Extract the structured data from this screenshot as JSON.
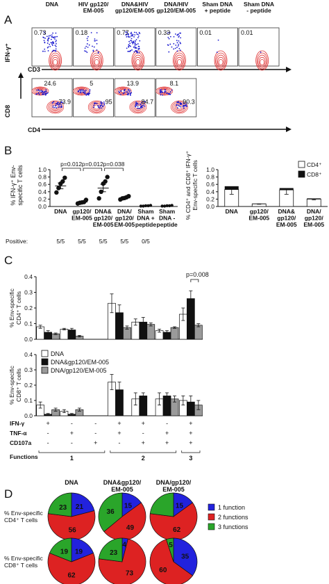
{
  "panel_a": {
    "letter": "A",
    "row1": {
      "headers": [
        "DNA",
        "HIV gp120/\nEM-005",
        "DNA&HIV\ngp120/EM-005",
        "DNA/HIV\ngp120/EM-005",
        "Sham DNA\n+ peptide",
        "Sham DNA\n- peptide"
      ],
      "percents": [
        "0.73",
        "0.18",
        "0.77",
        "0.33",
        "0.01",
        "0.01"
      ],
      "ylabel": "IFN-γ⁺",
      "xlabel": "CD3"
    },
    "row2": {
      "top_percents": [
        "24.6",
        "5",
        "13.9",
        "8.1"
      ],
      "right_percents": [
        "73.9",
        "95",
        "84.7",
        "90.3"
      ],
      "ylabel": "CD8",
      "xlabel": "CD4"
    }
  },
  "panel_b": {
    "letter": "B",
    "left": {
      "ylabel": "% IFN-γ⁺ Env-\nspecific T cells",
      "pvalues": [
        "p=0.012",
        "p=0.012",
        "p=0.038"
      ],
      "positive_label": "Positive:",
      "positive": [
        "5/5",
        "5/5",
        "5/5",
        "5/5",
        "0/5"
      ]
    },
    "right": {
      "ylabel": "% CD4⁺ and CD8⁺ IFN-γ⁺\nEnv-specific T cells",
      "legend": [
        "CD4⁺",
        "CD8⁺"
      ]
    }
  },
  "panel_c": {
    "letter": "C",
    "pvalue": "p=0.008",
    "legend": [
      "DNA",
      "DNA&gp120/EM-005",
      "DNA/gp120/EM-005"
    ],
    "row_labels": [
      "IFN-γ",
      "TNF-α",
      "CD107a"
    ],
    "functions_label": "Functions",
    "function_groups": [
      "1",
      "2",
      "3"
    ]
  },
  "panel_d": {
    "letter": "D",
    "col_titles": [
      "DNA",
      "DNA&gp120/\nEM-005",
      "DNA/gp120/\nEM-005"
    ],
    "row_labels": [
      "% Env-specific\nCD4⁺ T cells",
      "% Env-specific\nCD8⁺ T cells"
    ],
    "legend": [
      "1 function",
      "2 functions",
      "3 functions"
    ]
  },
  "colors": {
    "flow_red": "#e03030",
    "flow_blue": "#1a1ad0",
    "gray_bar": "#9a9a9a",
    "pie_blue": "#2222dd",
    "pie_red": "#dd2222",
    "pie_green": "#2aa52a"
  },
  "chart_data": [
    {
      "type": "scatter",
      "panel": "B-left",
      "categories": [
        "DNA",
        "gp120/\nEM-005",
        "DNA&\ngp120/\nEM-005",
        "DNA/\ngp120/\nEM-005",
        "Sham\nDNA +\npeptide",
        "Sham\nDNA -\npeptide"
      ],
      "yticks": [
        "0.0",
        "0.2",
        "0.4",
        "0.6",
        "0.8",
        "1.0"
      ],
      "ylim": [
        0,
        1.0
      ],
      "points": [
        [
          0.38,
          0.5,
          0.62,
          0.68,
          0.78
        ],
        [
          0.08,
          0.1,
          0.11,
          0.12,
          0.18
        ],
        [
          0.22,
          0.4,
          0.62,
          0.68,
          0.8
        ],
        [
          0.19,
          0.22,
          0.23,
          0.25,
          0.28
        ],
        [
          0.01,
          0.01,
          0.02,
          0.02,
          0.03
        ],
        [
          0.01,
          0.01,
          0.02,
          0.02,
          0.03
        ]
      ],
      "means": [
        0.56,
        0.12,
        0.5,
        0.23,
        0.02,
        0.02
      ],
      "sem": [
        0.08,
        0.02,
        0.1,
        0.02,
        0.005,
        0.005
      ]
    },
    {
      "type": "bar",
      "panel": "B-right",
      "categories": [
        "DNA",
        "gp120/\nEM-005",
        "DNA&\ngp120/\nEM-005",
        "DNA/\ngp120/\nEM-005"
      ],
      "yticks": [
        "0.0",
        "0.2",
        "0.4",
        "0.6",
        "0.8",
        "1.0"
      ],
      "ylim": [
        0,
        1.0
      ],
      "series": [
        {
          "name": "CD4⁺",
          "values": [
            0.46,
            0.07,
            0.45,
            0.2
          ]
        },
        {
          "name": "CD8⁺",
          "values": [
            0.09,
            0.01,
            0.05,
            0.02
          ]
        }
      ],
      "error": [
        0.13,
        0.01,
        0.12,
        0.02
      ]
    },
    {
      "type": "bar",
      "panel": "C-top",
      "ylabel": "% Env-specific\nCD4⁺ T cells",
      "yticks": [
        "0.0",
        "0.1",
        "0.2",
        "0.3",
        "0.4"
      ],
      "ylim": [
        0,
        0.4
      ],
      "series": [
        {
          "name": "DNA",
          "values": [
            0.08,
            0.065,
            0.0,
            0.23,
            0.11,
            0.055,
            0.16
          ]
        },
        {
          "name": "DNA&gp120/EM-005",
          "values": [
            0.045,
            0.06,
            0.0,
            0.17,
            0.11,
            0.045,
            0.26
          ]
        },
        {
          "name": "DNA/gp120/EM-005",
          "values": [
            0.035,
            0.02,
            0.0,
            0.075,
            0.095,
            0.075,
            0.09
          ]
        }
      ],
      "error": [
        [
          0.01,
          0.005,
          0.0,
          0.06,
          0.02,
          0.01,
          0.04
        ],
        [
          0.01,
          0.01,
          0.0,
          0.05,
          0.03,
          0.01,
          0.05
        ],
        [
          0.005,
          0.005,
          0.0,
          0.01,
          0.01,
          0.005,
          0.01
        ]
      ]
    },
    {
      "type": "bar",
      "panel": "C-bottom",
      "ylabel": "% Env-specific\nCD8⁺ T cells",
      "yticks": [
        "0.0",
        "0.1",
        "0.2",
        "0.3",
        "0.4"
      ],
      "ylim": [
        0,
        0.4
      ],
      "series": [
        {
          "name": "DNA",
          "values": [
            0.07,
            0.03,
            0.0,
            0.22,
            0.11,
            0.11,
            0.1
          ]
        },
        {
          "name": "DNA&gp120/EM-005",
          "values": [
            0.01,
            0.01,
            0.0,
            0.17,
            0.13,
            0.13,
            0.09
          ]
        },
        {
          "name": "DNA/gp120/EM-005",
          "values": [
            0.04,
            0.04,
            0.0,
            0.0,
            0.0,
            0.11,
            0.07
          ]
        }
      ],
      "error": [
        [
          0.02,
          0.01,
          0.0,
          0.05,
          0.04,
          0.04,
          0.03
        ],
        [
          0.005,
          0.005,
          0.0,
          0.05,
          0.02,
          0.02,
          0.04
        ],
        [
          0.01,
          0.01,
          0.0,
          0.0,
          0.0,
          0.02,
          0.03
        ]
      ],
      "signs": {
        "IFN-γ": [
          "+",
          "-",
          "-",
          "+",
          "+",
          "-",
          "+"
        ],
        "TNF-α": [
          "-",
          "+",
          "-",
          "+",
          "-",
          "+",
          "+"
        ],
        "CD107a": [
          "-",
          "-",
          "+",
          "-",
          "+",
          "+",
          "+"
        ]
      }
    },
    {
      "type": "pie",
      "panel": "D",
      "rows": [
        [
          [
            21,
            56,
            23
          ],
          [
            15,
            49,
            36
          ],
          [
            15,
            62,
            23
          ]
        ],
        [
          [
            19,
            62,
            19
          ],
          [
            4,
            73,
            23
          ],
          [
            35,
            60,
            5
          ]
        ]
      ],
      "slice_labels": [
        [
          [
            "21",
            "56",
            "23"
          ],
          [
            "15",
            "49",
            "36"
          ],
          [
            "15",
            "62",
            ""
          ]
        ],
        [
          [
            "19",
            "62",
            "19"
          ],
          [
            "4",
            "73",
            "23"
          ],
          [
            "35",
            "60",
            "5"
          ]
        ]
      ]
    }
  ]
}
